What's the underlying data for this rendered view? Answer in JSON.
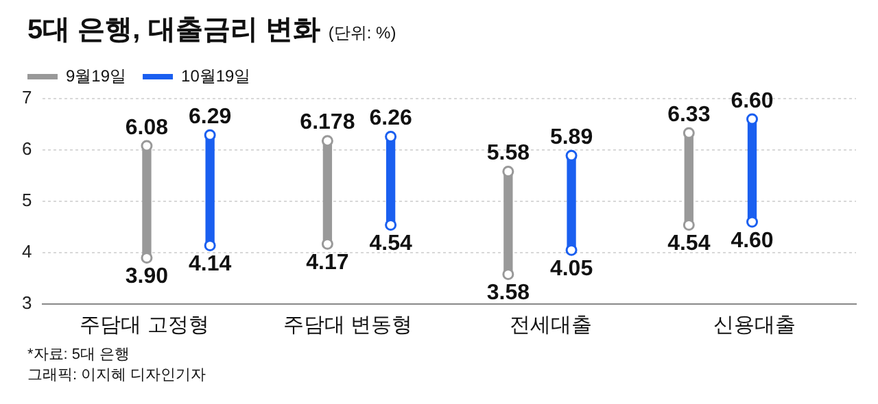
{
  "chart_data": {
    "type": "bar",
    "title": "5대 은행, 대출금리 변화",
    "subtitle": "(단위: %)",
    "categories": [
      "주담대 고정형",
      "주담대 변동형",
      "전세대출",
      "신용대출"
    ],
    "series": [
      {
        "name": "9월19일",
        "color": "#999999",
        "base": [
          3.9,
          4.17,
          3.58,
          4.54
        ],
        "values": [
          2.18,
          2.008,
          2.0,
          1.79
        ]
      },
      {
        "name": "10월19일",
        "color": "#1a5ff0",
        "base": [
          4.14,
          4.54,
          4.05,
          4.6
        ],
        "values": [
          2.15,
          1.72,
          1.84,
          2.0
        ]
      },
      {
        "type": "scatter",
        "color": "#999999",
        "x": [
          "주담대 고정형",
          "주담대 변동형",
          "전세대출",
          "신용대출",
          "주담대 고정형",
          "주담대 변동형",
          "전세대출",
          "신용대출"
        ],
        "values": [
          3.9,
          4.17,
          3.58,
          4.54,
          6.08,
          6.178,
          5.58,
          6.33
        ],
        "value_labels": [
          "3.90",
          "4.17",
          "3.58",
          "4.54",
          "6.08",
          "6.178",
          "5.58",
          "6.33"
        ]
      },
      {
        "type": "scatter",
        "color": "#1a5ff0",
        "x": [
          "주담대 고정형",
          "주담대 변동형",
          "전세대출",
          "신용대출",
          "주담대 고정형",
          "주담대 변동형",
          "전세대출",
          "신용대출"
        ],
        "values": [
          4.14,
          4.54,
          4.05,
          4.6,
          6.29,
          6.26,
          5.89,
          6.6
        ],
        "value_labels": [
          "4.14",
          "4.54",
          "4.05",
          "4.60",
          "6.29",
          "6.26",
          "5.89",
          "6.60"
        ]
      }
    ],
    "ylim": [
      3,
      7
    ],
    "yticks": [
      3,
      4,
      5,
      6,
      7
    ],
    "grid": "y",
    "legend": "top left",
    "marker": "circle",
    "annotations": [
      "*자료: 5대 은행",
      "그래픽: 이지혜 디자인기자"
    ]
  }
}
